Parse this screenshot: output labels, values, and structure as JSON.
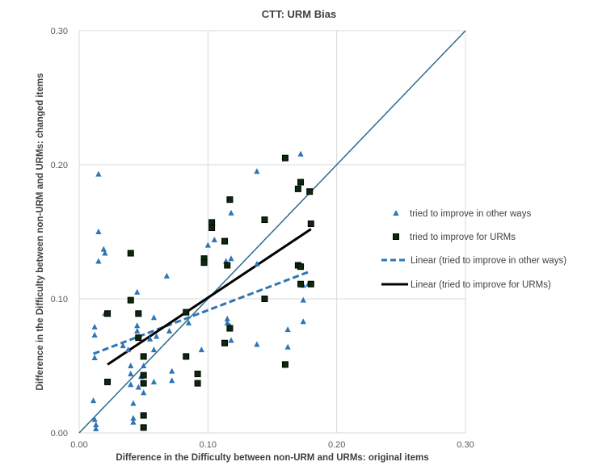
{
  "chart_data": {
    "type": "scatter",
    "title": "CTT: URM Bias",
    "xlabel": "Difference in the Difficulty between non-URM and URMs: original items",
    "ylabel": "Difference in the Difficulty between non-URM and URMs: changed  items",
    "xlim": [
      0,
      0.3
    ],
    "ylim": [
      0,
      0.3
    ],
    "xticks": [
      "0.00",
      "0.10",
      "0.20",
      "0.30"
    ],
    "yticks": [
      "0.00",
      "0.10",
      "0.20",
      "0.30"
    ],
    "grid": true,
    "legend_position": "right",
    "series": [
      {
        "name": "tried to improve in other ways",
        "marker": "triangle",
        "color": "#2E75B6",
        "points": [
          [
            0.011,
            0.024
          ],
          [
            0.012,
            0.079
          ],
          [
            0.012,
            0.073
          ],
          [
            0.012,
            0.056
          ],
          [
            0.012,
            0.01
          ],
          [
            0.013,
            0.006
          ],
          [
            0.013,
            0.003
          ],
          [
            0.015,
            0.193
          ],
          [
            0.015,
            0.15
          ],
          [
            0.015,
            0.128
          ],
          [
            0.019,
            0.137
          ],
          [
            0.02,
            0.134
          ],
          [
            0.02,
            0.089
          ],
          [
            0.034,
            0.065
          ],
          [
            0.038,
            0.062
          ],
          [
            0.04,
            0.05
          ],
          [
            0.04,
            0.044
          ],
          [
            0.04,
            0.036
          ],
          [
            0.042,
            0.022
          ],
          [
            0.042,
            0.011
          ],
          [
            0.042,
            0.008
          ],
          [
            0.045,
            0.105
          ],
          [
            0.045,
            0.08
          ],
          [
            0.045,
            0.076
          ],
          [
            0.046,
            0.034
          ],
          [
            0.048,
            0.042
          ],
          [
            0.05,
            0.05
          ],
          [
            0.05,
            0.03
          ],
          [
            0.055,
            0.07
          ],
          [
            0.058,
            0.086
          ],
          [
            0.058,
            0.038
          ],
          [
            0.058,
            0.062
          ],
          [
            0.06,
            0.072
          ],
          [
            0.068,
            0.117
          ],
          [
            0.07,
            0.076
          ],
          [
            0.072,
            0.046
          ],
          [
            0.072,
            0.039
          ],
          [
            0.085,
            0.082
          ],
          [
            0.095,
            0.062
          ],
          [
            0.1,
            0.14
          ],
          [
            0.105,
            0.144
          ],
          [
            0.114,
            0.128
          ],
          [
            0.115,
            0.085
          ],
          [
            0.115,
            0.082
          ],
          [
            0.117,
            0.08
          ],
          [
            0.118,
            0.13
          ],
          [
            0.118,
            0.164
          ],
          [
            0.118,
            0.069
          ],
          [
            0.138,
            0.195
          ],
          [
            0.138,
            0.126
          ],
          [
            0.138,
            0.066
          ],
          [
            0.162,
            0.077
          ],
          [
            0.162,
            0.064
          ],
          [
            0.17,
            0.125
          ],
          [
            0.172,
            0.208
          ],
          [
            0.174,
            0.11
          ],
          [
            0.174,
            0.099
          ],
          [
            0.174,
            0.083
          ],
          [
            0.178,
            0.111
          ]
        ]
      },
      {
        "name": "tried to improve for URMs",
        "marker": "square",
        "color": "#0B2A0B",
        "points": [
          [
            0.022,
            0.089
          ],
          [
            0.022,
            0.038
          ],
          [
            0.04,
            0.134
          ],
          [
            0.04,
            0.099
          ],
          [
            0.046,
            0.089
          ],
          [
            0.046,
            0.071
          ],
          [
            0.05,
            0.057
          ],
          [
            0.05,
            0.043
          ],
          [
            0.05,
            0.037
          ],
          [
            0.05,
            0.013
          ],
          [
            0.05,
            0.004
          ],
          [
            0.083,
            0.09
          ],
          [
            0.083,
            0.057
          ],
          [
            0.092,
            0.044
          ],
          [
            0.092,
            0.037
          ],
          [
            0.097,
            0.13
          ],
          [
            0.097,
            0.127
          ],
          [
            0.103,
            0.157
          ],
          [
            0.103,
            0.153
          ],
          [
            0.113,
            0.143
          ],
          [
            0.113,
            0.067
          ],
          [
            0.115,
            0.125
          ],
          [
            0.117,
            0.078
          ],
          [
            0.117,
            0.174
          ],
          [
            0.144,
            0.159
          ],
          [
            0.144,
            0.1
          ],
          [
            0.16,
            0.051
          ],
          [
            0.16,
            0.205
          ],
          [
            0.17,
            0.182
          ],
          [
            0.17,
            0.125
          ],
          [
            0.172,
            0.187
          ],
          [
            0.172,
            0.124
          ],
          [
            0.172,
            0.111
          ],
          [
            0.179,
            0.18
          ],
          [
            0.18,
            0.156
          ],
          [
            0.18,
            0.111
          ]
        ]
      }
    ],
    "trendlines": [
      {
        "name": "Linear (tried to improve in other ways)",
        "style": "dashed",
        "color": "#2E75B6",
        "x": [
          0.011,
          0.178
        ],
        "y": [
          0.059,
          0.12
        ]
      },
      {
        "name": "Linear (tried to improve for URMs)",
        "style": "solid",
        "color": "#000000",
        "x": [
          0.022,
          0.18
        ],
        "y": [
          0.051,
          0.152
        ]
      }
    ],
    "reference_line": {
      "style": "solid",
      "color": "#2A6B8C",
      "x": [
        0,
        0.3
      ],
      "y": [
        0,
        0.3
      ]
    }
  }
}
